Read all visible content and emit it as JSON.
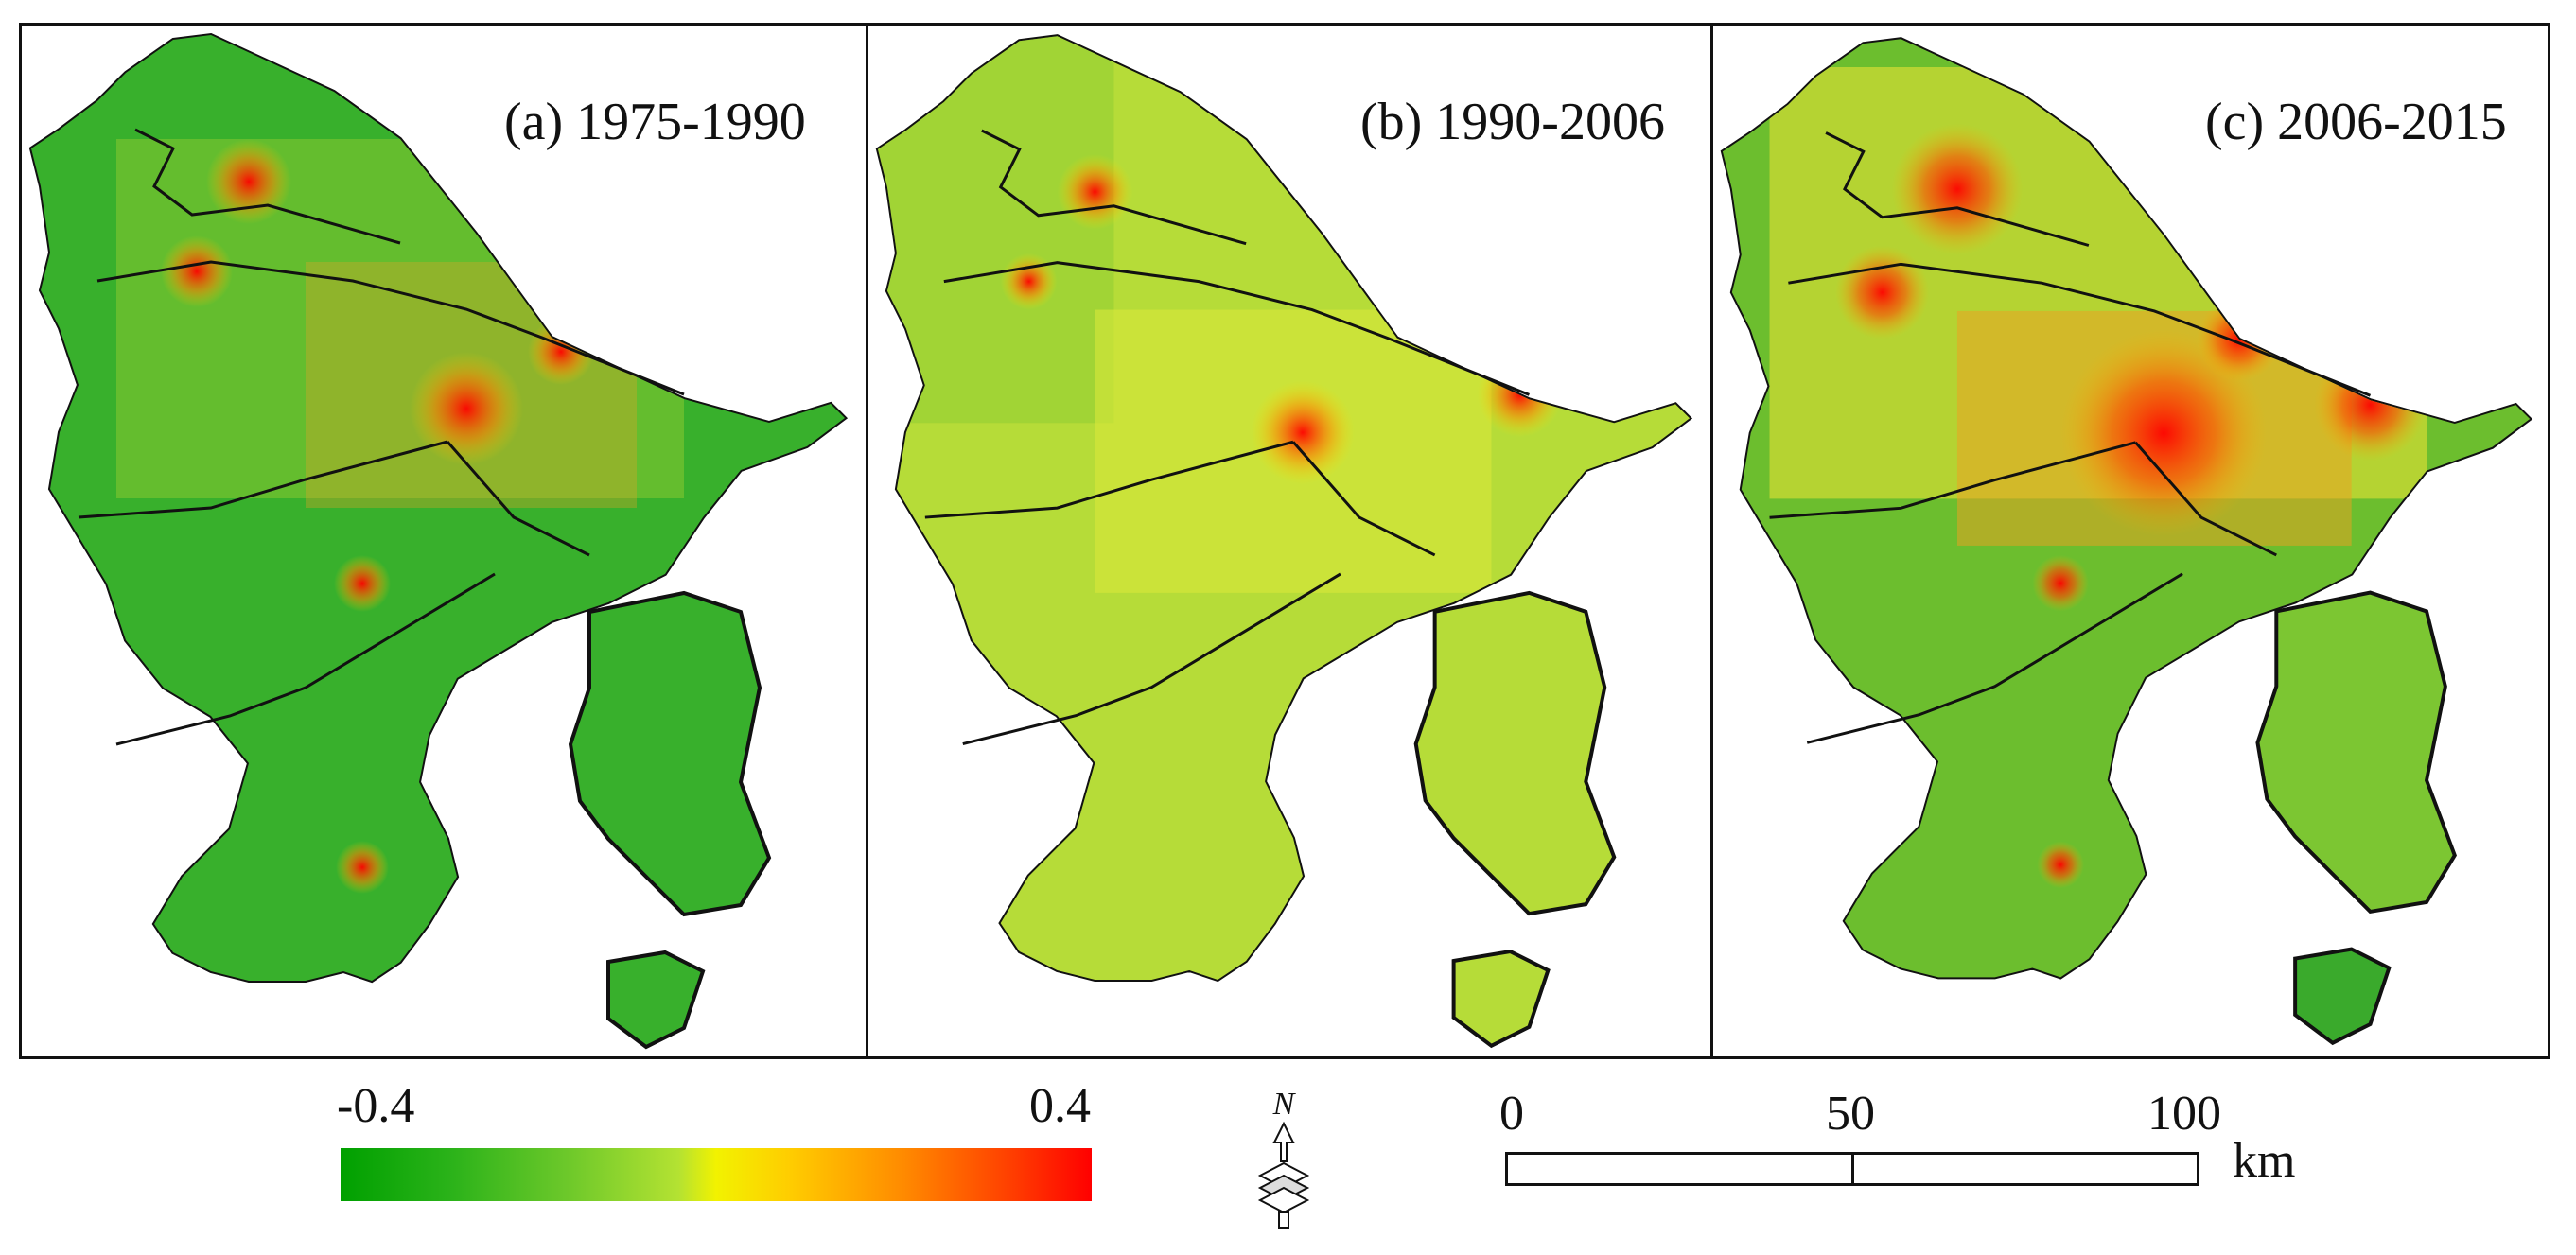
{
  "panels": [
    {
      "title": "(a) 1975-1990"
    },
    {
      "title": "(b) 1990-2006"
    },
    {
      "title": "(c) 2006-2015"
    }
  ],
  "legend": {
    "min_label": "-0.4",
    "max_label": "0.4",
    "min_value": -0.4,
    "max_value": 0.4,
    "colors": [
      "#00a000",
      "#f2f200",
      "#ff0000"
    ]
  },
  "north_arrow": {
    "label": "N"
  },
  "scale_bar": {
    "ticks": [
      "0",
      "50",
      "100"
    ],
    "unit": "km"
  }
}
